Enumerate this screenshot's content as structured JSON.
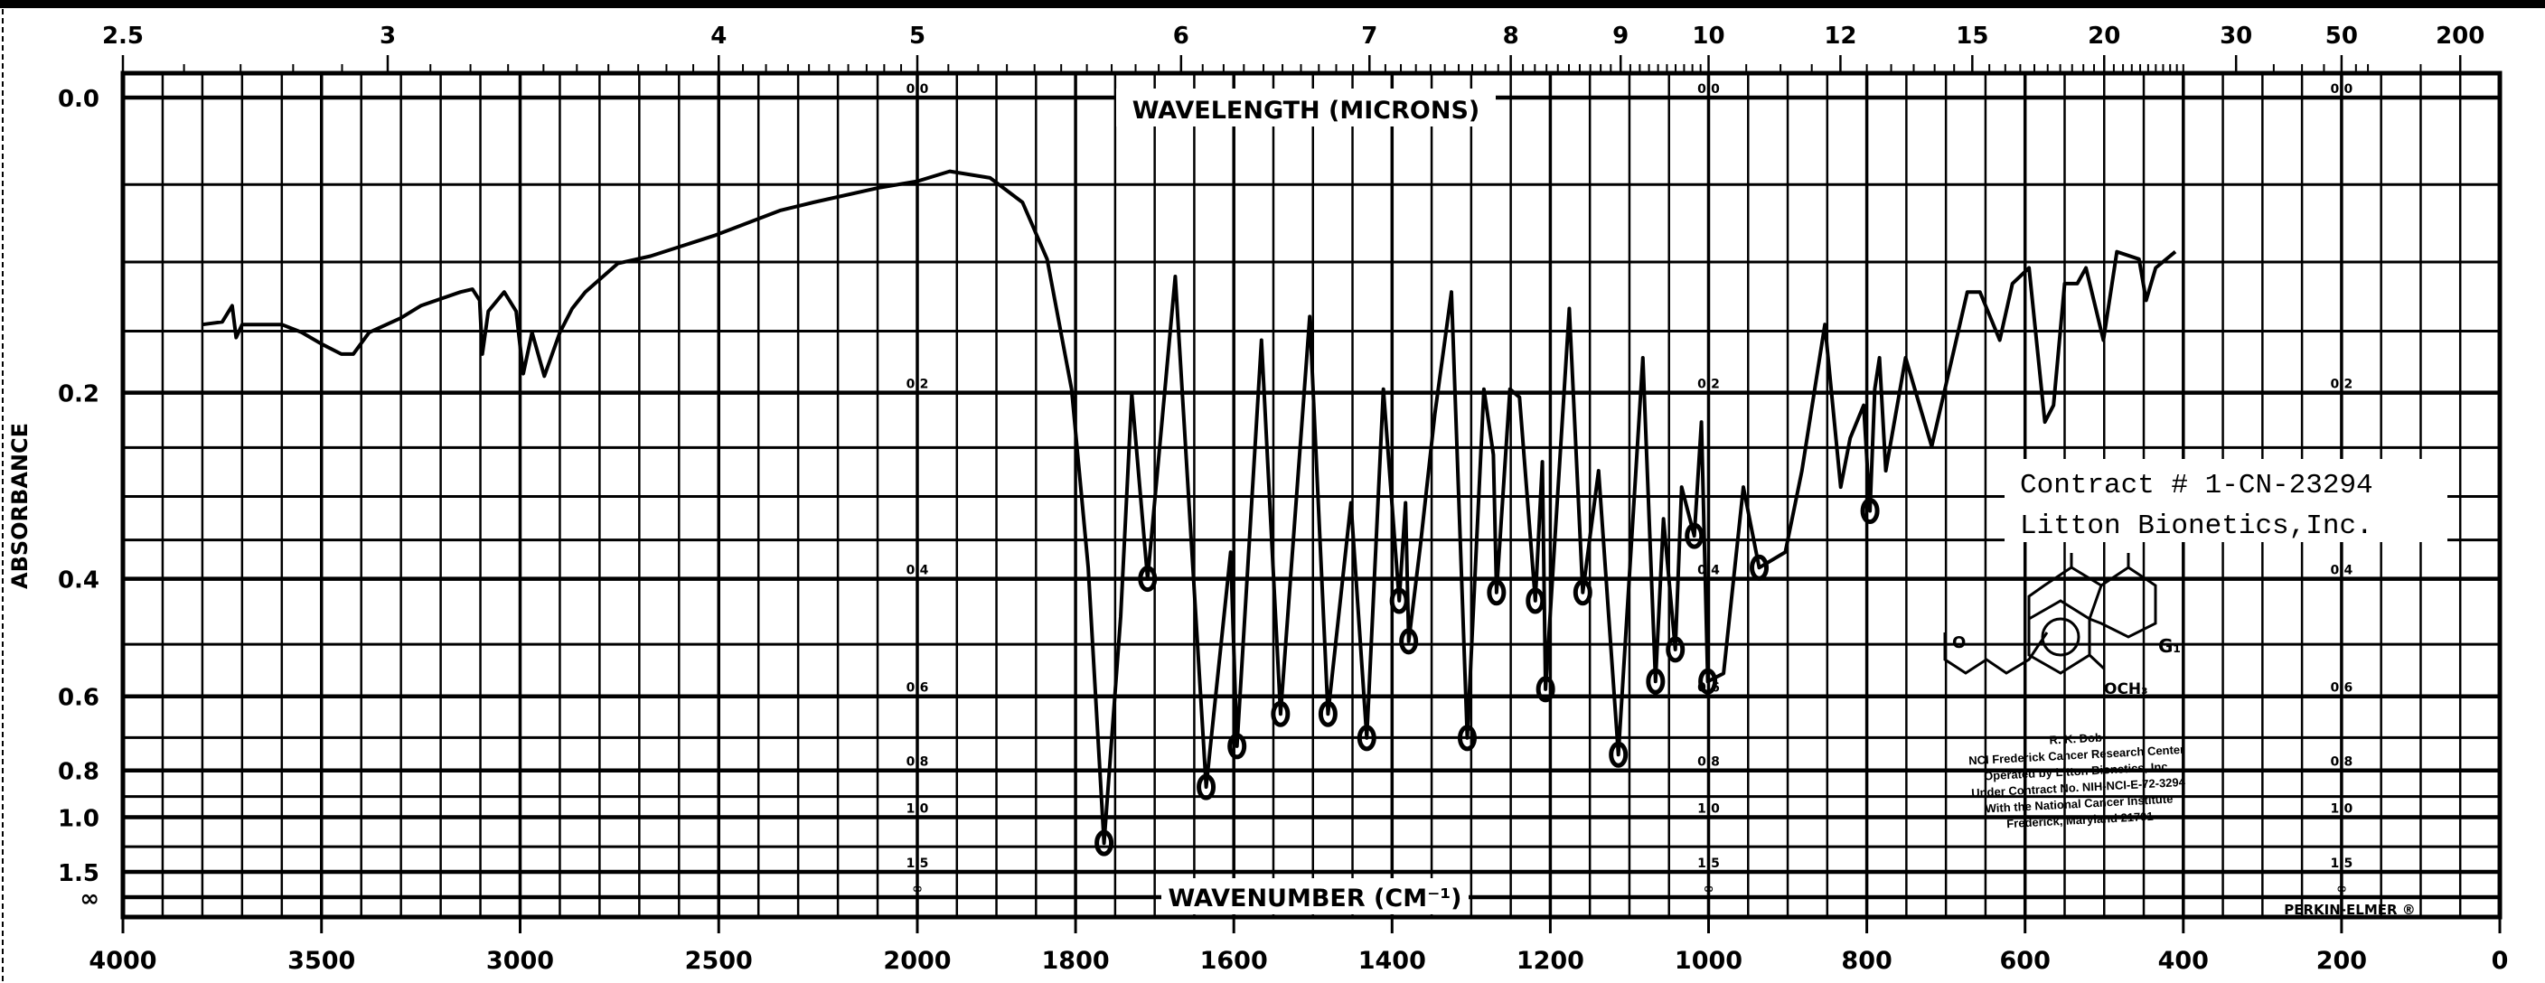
{
  "chart_data": {
    "type": "line",
    "title": "",
    "top_axis_label": "WAVELENGTH (MICRONS)",
    "xlabel": "WAVENUMBER (CM⁻¹)",
    "ylabel": "ABSORBANCE",
    "xlim": [
      4000,
      0
    ],
    "ylim": [
      0.0,
      "∞"
    ],
    "grid": true,
    "x_ticks": [
      "4000",
      "3500",
      "3000",
      "2500",
      "2000",
      "1800",
      "1600",
      "1400",
      "1200",
      "1000",
      "800",
      "600",
      "400",
      "200",
      "0"
    ],
    "x_tick_values": [
      4000,
      3500,
      3000,
      2500,
      2000,
      1800,
      1600,
      1400,
      1200,
      1000,
      800,
      600,
      400,
      200,
      0
    ],
    "top_ticks": [
      "2.5",
      "3",
      "4",
      "5",
      "6",
      "7",
      "8",
      "9",
      "10",
      "12",
      "15",
      "20",
      "30",
      "50",
      "200"
    ],
    "top_tick_values": [
      2.5,
      3,
      4,
      5,
      6,
      7,
      8,
      9,
      10,
      12,
      15,
      20,
      30,
      50,
      200
    ],
    "y_ticks": [
      "0.0",
      "0.2",
      "0.4",
      "0.6",
      "0.8",
      "1.0",
      "1.5",
      "∞"
    ],
    "y_tick_values": [
      0.0,
      0.2,
      0.4,
      0.6,
      0.8,
      1.0,
      1.5,
      99
    ],
    "inner_scale_labels": [
      "0.0",
      "0.2",
      "0.4",
      "0.6",
      "0.8",
      "1.0",
      "1.5",
      "∞"
    ],
    "series": [
      {
        "name": "spectrum",
        "points": [
          [
            3800,
            0.145
          ],
          [
            3750,
            0.143
          ],
          [
            3725,
            0.131
          ],
          [
            3715,
            0.155
          ],
          [
            3700,
            0.145
          ],
          [
            3600,
            0.145
          ],
          [
            3550,
            0.151
          ],
          [
            3500,
            0.16
          ],
          [
            3450,
            0.168
          ],
          [
            3420,
            0.168
          ],
          [
            3380,
            0.151
          ],
          [
            3300,
            0.14
          ],
          [
            3250,
            0.131
          ],
          [
            3150,
            0.121
          ],
          [
            3120,
            0.119
          ],
          [
            3102,
            0.127
          ],
          [
            3095,
            0.168
          ],
          [
            3080,
            0.135
          ],
          [
            3040,
            0.121
          ],
          [
            3010,
            0.135
          ],
          [
            2992,
            0.184
          ],
          [
            2970,
            0.151
          ],
          [
            2939,
            0.186
          ],
          [
            2900,
            0.151
          ],
          [
            2869,
            0.133
          ],
          [
            2836,
            0.121
          ],
          [
            2754,
            0.101
          ],
          [
            2672,
            0.096
          ],
          [
            2508,
            0.082
          ],
          [
            2344,
            0.066
          ],
          [
            2262,
            0.061
          ],
          [
            2098,
            0.052
          ],
          [
            2000,
            0.048
          ],
          [
            1959,
            0.042
          ],
          [
            1908,
            0.046
          ],
          [
            1867,
            0.061
          ],
          [
            1836,
            0.098
          ],
          [
            1805,
            0.197
          ],
          [
            1784,
            0.385
          ],
          [
            1764,
            1.17
          ],
          [
            1743,
            0.455
          ],
          [
            1729,
            0.201
          ],
          [
            1709,
            0.4
          ],
          [
            1674,
            0.11
          ],
          [
            1635,
            0.861
          ],
          [
            1604,
            0.365
          ],
          [
            1596,
            0.724
          ],
          [
            1565,
            0.157
          ],
          [
            1541,
            0.64
          ],
          [
            1504,
            0.139
          ],
          [
            1481,
            0.64
          ],
          [
            1452,
            0.307
          ],
          [
            1432,
            0.701
          ],
          [
            1411,
            0.197
          ],
          [
            1391,
            0.431
          ],
          [
            1383,
            0.307
          ],
          [
            1379,
            0.495
          ],
          [
            1364,
            0.355
          ],
          [
            1346,
            0.219
          ],
          [
            1325,
            0.121
          ],
          [
            1305,
            0.701
          ],
          [
            1284,
            0.197
          ],
          [
            1272,
            0.257
          ],
          [
            1268,
            0.419
          ],
          [
            1251,
            0.197
          ],
          [
            1239,
            0.204
          ],
          [
            1219,
            0.431
          ],
          [
            1210,
            0.264
          ],
          [
            1206,
            0.585
          ],
          [
            1176,
            0.133
          ],
          [
            1159,
            0.419
          ],
          [
            1139,
            0.273
          ],
          [
            1114,
            0.749
          ],
          [
            1083,
            0.171
          ],
          [
            1067,
            0.569
          ],
          [
            1057,
            0.325
          ],
          [
            1042,
            0.509
          ],
          [
            1034,
            0.29
          ],
          [
            1018,
            0.345
          ],
          [
            1009,
            0.226
          ],
          [
            1001,
            0.569
          ],
          [
            981,
            0.553
          ],
          [
            956,
            0.29
          ],
          [
            936,
            0.385
          ],
          [
            903,
            0.365
          ],
          [
            882,
            0.273
          ],
          [
            853,
            0.145
          ],
          [
            833,
            0.29
          ],
          [
            821,
            0.241
          ],
          [
            804,
            0.211
          ],
          [
            796,
            0.316
          ],
          [
            790,
            0.197
          ],
          [
            784,
            0.171
          ],
          [
            776,
            0.273
          ],
          [
            751,
            0.171
          ],
          [
            718,
            0.249
          ],
          [
            673,
            0.121
          ],
          [
            657,
            0.121
          ],
          [
            632,
            0.157
          ],
          [
            616,
            0.115
          ],
          [
            595,
            0.104
          ],
          [
            575,
            0.226
          ],
          [
            564,
            0.211
          ],
          [
            550,
            0.115
          ],
          [
            534,
            0.115
          ],
          [
            523,
            0.104
          ],
          [
            501,
            0.157
          ],
          [
            484,
            0.093
          ],
          [
            456,
            0.098
          ],
          [
            447,
            0.127
          ],
          [
            435,
            0.104
          ],
          [
            410,
            0.093
          ]
        ]
      }
    ]
  },
  "annotation": {
    "contract_line1": "Contract # 1-CN-23294",
    "contract_line2": "Litton Bionetics,Inc."
  },
  "structure": {
    "label_g": "G₁",
    "label_och3": "OCH₃",
    "label_o": "O"
  },
  "stamp": {
    "lines": [
      "R. K. Dob",
      "NCI Frederick Cancer Research Center",
      "Operated by Litton Bionetics, Inc.",
      "Under Contract No. NIH-NCI-E-72-3294",
      "With the National Cancer Institute",
      "Frederick, Maryland 21701"
    ]
  },
  "brand": "PERKIN-ELMER ®"
}
